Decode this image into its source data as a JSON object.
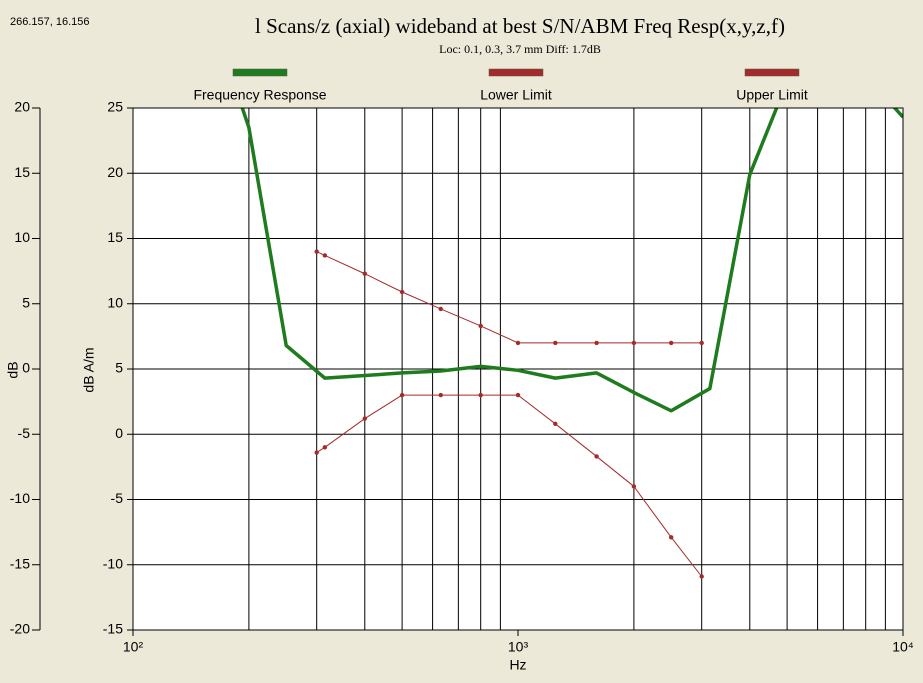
{
  "chart_data": {
    "type": "line",
    "cursor_readout": "266.157, 16.156",
    "title": "l Scans/z (axial) wideband at best S/N/ABM Freq Resp(x,y,z,f)",
    "subtitle": "Loc: 0.1, 0.3, 3.7 mm Diff: 1.7dB",
    "xlabel": "Hz",
    "ylabel": "dB A/m",
    "y2label": "dB",
    "xscale": "log",
    "xlim": [
      100,
      10000
    ],
    "xticks": [
      {
        "value": 100,
        "label": "10²"
      },
      {
        "value": 1000,
        "label": "10³"
      },
      {
        "value": 10000,
        "label": "10⁴"
      }
    ],
    "xgrid_minor": [
      200,
      300,
      400,
      500,
      600,
      700,
      800,
      900,
      2000,
      3000,
      4000,
      5000,
      6000,
      7000,
      8000,
      9000
    ],
    "ylim": [
      -15,
      25
    ],
    "yticks": [
      -15,
      -10,
      -5,
      0,
      5,
      10,
      15,
      20,
      25
    ],
    "y2lim": [
      -20,
      20
    ],
    "y2ticks": [
      -20,
      -15,
      -10,
      -5,
      0,
      5,
      10,
      15,
      20
    ],
    "grid": true,
    "legend": "top",
    "series": [
      {
        "name": "Frequency Response",
        "color": "#1e7b1e",
        "width": 3.5,
        "markers": false,
        "x": [
          160,
          200,
          250,
          315,
          400,
          500,
          630,
          800,
          1000,
          1250,
          1600,
          2000,
          2500,
          3150,
          4000,
          5000,
          6300,
          8000,
          10000
        ],
        "values": [
          32,
          23.5,
          6.8,
          4.3,
          4.5,
          4.7,
          4.85,
          5.2,
          4.9,
          4.3,
          4.7,
          3.2,
          1.8,
          3.5,
          19.9,
          27,
          29,
          27.5,
          24.3
        ]
      },
      {
        "name": "Lower Limit",
        "color": "#a52a2a",
        "width": 1,
        "markers": true,
        "x": [
          300,
          315,
          400,
          500,
          630,
          800,
          1000,
          1250,
          1600,
          2000,
          2500,
          3000
        ],
        "values": [
          -1.4,
          -1.0,
          1.2,
          3.0,
          3.0,
          3.0,
          3.0,
          0.8,
          -1.7,
          -4.0,
          -7.9,
          -10.9
        ]
      },
      {
        "name": "Upper Limit",
        "color": "#a52a2a",
        "width": 1,
        "markers": true,
        "x": [
          300,
          315,
          400,
          500,
          630,
          800,
          1000,
          1250,
          1600,
          2000,
          2500,
          3000
        ],
        "values": [
          14.0,
          13.7,
          12.3,
          10.9,
          9.6,
          8.3,
          7.0,
          7.0,
          7.0,
          7.0,
          7.0,
          7.0
        ]
      }
    ]
  }
}
